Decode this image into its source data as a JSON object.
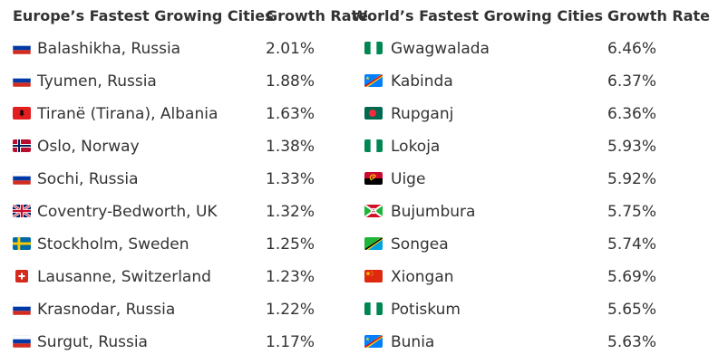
{
  "headers": {
    "europe_cities": "Europe’s Fastest Growing Cities",
    "europe_rate": "Growth Rate",
    "world_cities": "World’s Fastest Growing Cities",
    "world_rate": "Growth Rate"
  },
  "europe": [
    {
      "city": "Balashikha, Russia",
      "rate": "2.01%",
      "flag": "russia-flag-icon"
    },
    {
      "city": "Tyumen, Russia",
      "rate": "1.88%",
      "flag": "russia-flag-icon"
    },
    {
      "city": "Tiranë (Tirana), Albania",
      "rate": "1.63%",
      "flag": "albania-flag-icon"
    },
    {
      "city": "Oslo, Norway",
      "rate": "1.38%",
      "flag": "norway-flag-icon"
    },
    {
      "city": "Sochi, Russia",
      "rate": "1.33%",
      "flag": "russia-flag-icon"
    },
    {
      "city": "Coventry-Bedworth, UK",
      "rate": "1.32%",
      "flag": "uk-flag-icon"
    },
    {
      "city": "Stockholm, Sweden",
      "rate": "1.25%",
      "flag": "sweden-flag-icon"
    },
    {
      "city": "Lausanne, Switzerland",
      "rate": "1.23%",
      "flag": "switzerland-flag-icon"
    },
    {
      "city": "Krasnodar, Russia",
      "rate": "1.22%",
      "flag": "russia-flag-icon"
    },
    {
      "city": "Surgut, Russia",
      "rate": "1.17%",
      "flag": "russia-flag-icon"
    }
  ],
  "world": [
    {
      "city": "Gwagwalada",
      "rate": "6.46%",
      "flag": "nigeria-flag-icon"
    },
    {
      "city": "Kabinda",
      "rate": "6.37%",
      "flag": "dr-congo-flag-icon"
    },
    {
      "city": "Rupganj",
      "rate": "6.36%",
      "flag": "bangladesh-flag-icon"
    },
    {
      "city": "Lokoja",
      "rate": "5.93%",
      "flag": "nigeria-flag-icon"
    },
    {
      "city": "Uige",
      "rate": "5.92%",
      "flag": "angola-flag-icon"
    },
    {
      "city": "Bujumbura",
      "rate": "5.75%",
      "flag": "burundi-flag-icon"
    },
    {
      "city": "Songea",
      "rate": "5.74%",
      "flag": "tanzania-flag-icon"
    },
    {
      "city": "Xiongan",
      "rate": "5.69%",
      "flag": "china-flag-icon"
    },
    {
      "city": "Potiskum",
      "rate": "5.65%",
      "flag": "nigeria-flag-icon"
    },
    {
      "city": "Bunia",
      "rate": "5.63%",
      "flag": "dr-congo-flag-icon"
    }
  ]
}
